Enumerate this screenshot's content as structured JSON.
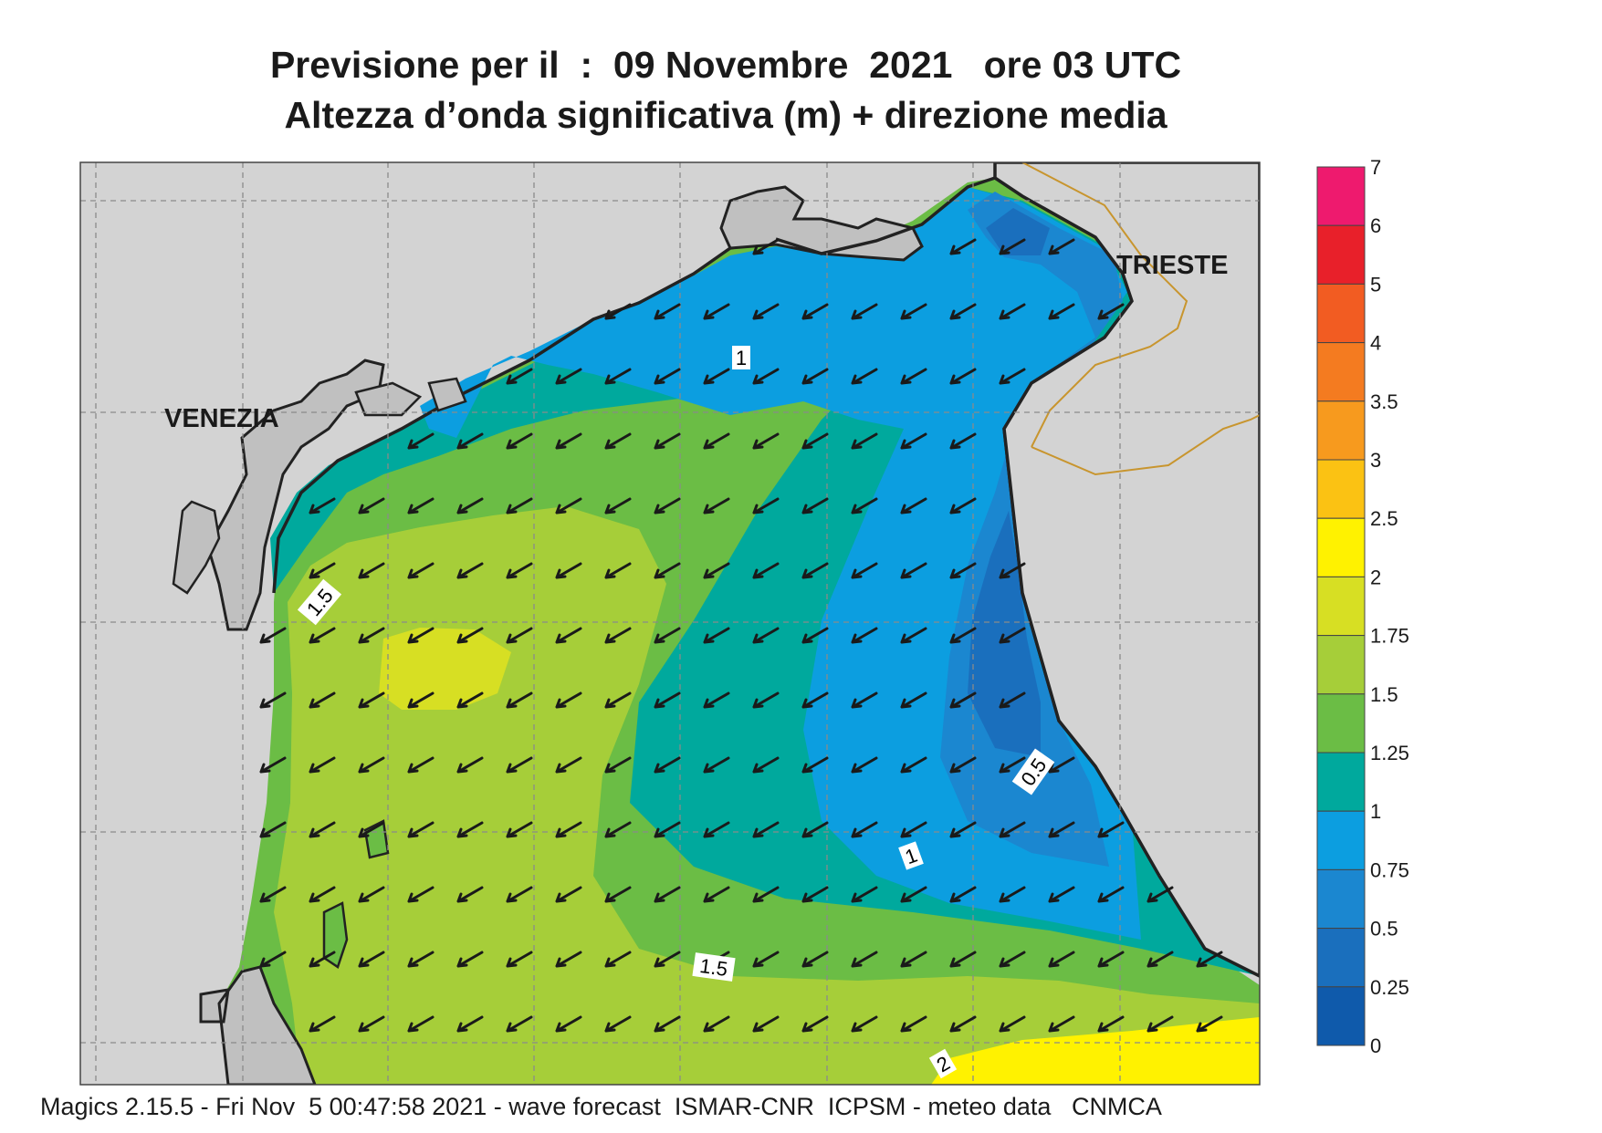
{
  "header": {
    "title_line1": "Previsione per il  :  09 Novembre  2021   ore 03 UTC",
    "title_line2": "Altezza d’onda significativa (m) + direzione media"
  },
  "map": {
    "cities": [
      "VENEZIA",
      "TRIESTE"
    ],
    "contour_labels": [
      "1",
      "1",
      "1.5",
      "1.5",
      "0.5",
      "2"
    ],
    "arrow_direction": "south-west",
    "land_color": "#d3d3d3",
    "coast_color": "#222222",
    "border_color": "#c8952e"
  },
  "legend": {
    "labels": [
      "7",
      "6",
      "5",
      "4",
      "3.5",
      "3",
      "2.5",
      "2",
      "1.75",
      "1.5",
      "1.25",
      "1",
      "0.75",
      "0.5",
      "0.25",
      "0"
    ],
    "colors": [
      "#ee1a6e",
      "#e8202a",
      "#f25c22",
      "#f47b20",
      "#f79a1e",
      "#fbc213",
      "#fff200",
      "#d7df23",
      "#a6ce39",
      "#6bbd45",
      "#00a99d",
      "#0c9ee0",
      "#1b87d0",
      "#1a6fbd",
      "#0f5aab"
    ]
  },
  "footer": {
    "text": "Magics 2.15.5 - Fri Nov  5 00:47:58 2021 - wave forecast  ISMAR-CNR  ICPSM - meteo data   CNMCA"
  }
}
